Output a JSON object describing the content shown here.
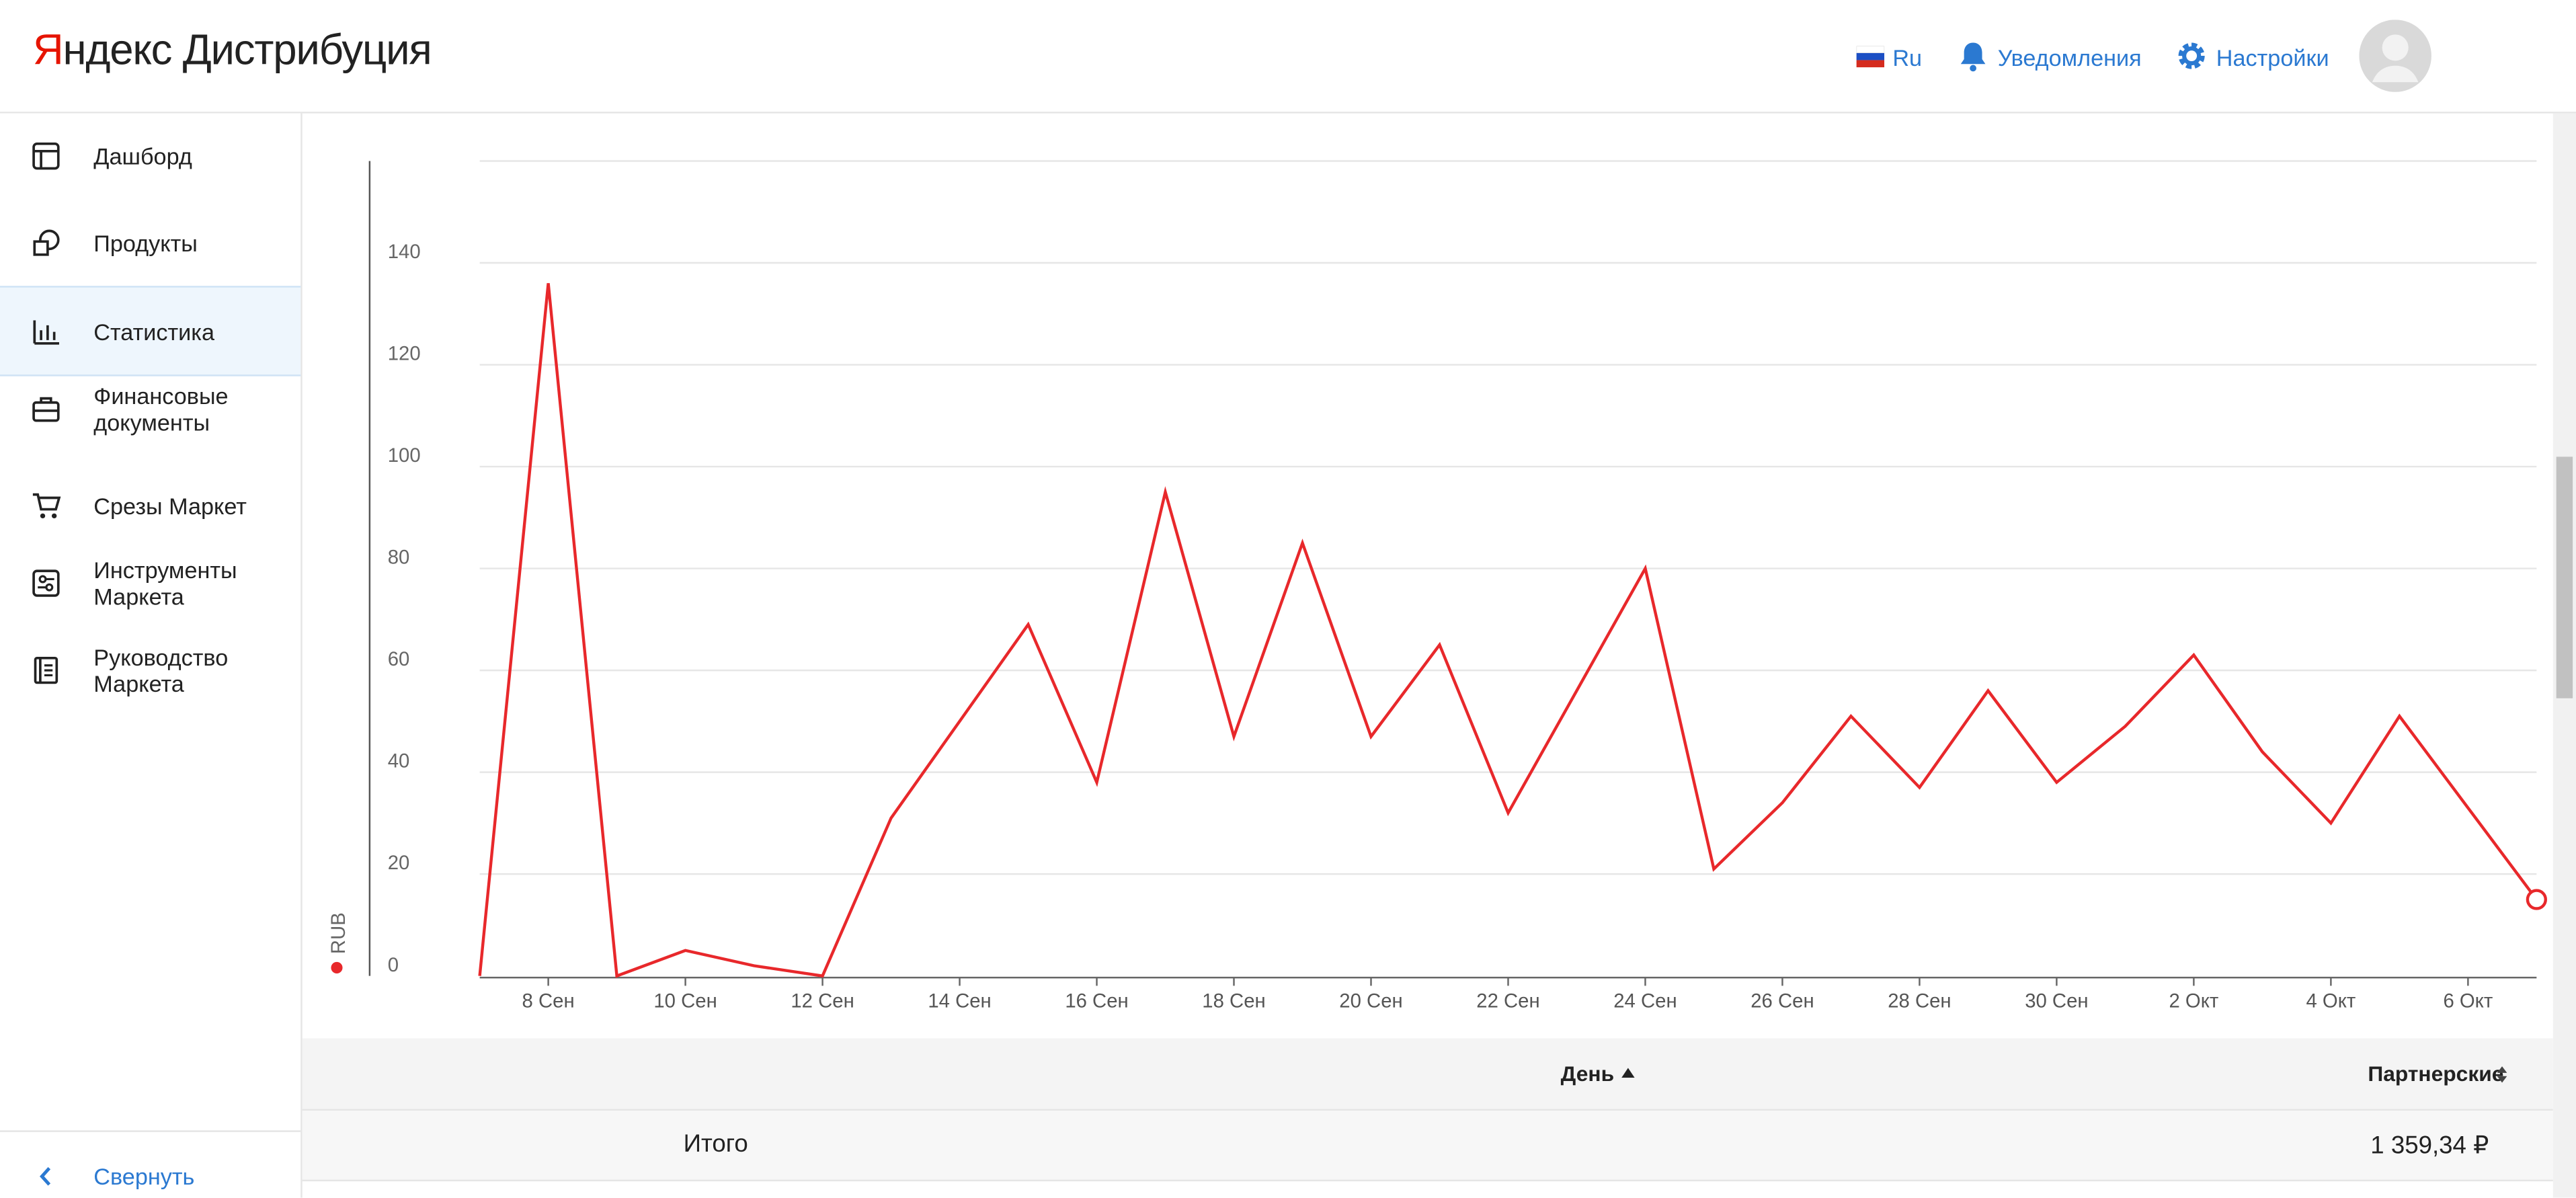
{
  "header": {
    "logo_brand": "Яндекс",
    "logo_product": "Дистрибуция",
    "language": "Ru",
    "notifications": "Уведомления",
    "settings": "Настройки"
  },
  "sidebar": {
    "items": [
      "Дашборд",
      "Продукты",
      "Статистика",
      "Финансовые документы",
      "Срезы Маркет",
      "Инструменты Маркета",
      "Руководство Маркета"
    ],
    "collapse": "Свернуть"
  },
  "chart_data": {
    "type": "line",
    "categories": [
      null,
      "8 Сен",
      null,
      "10 Сен",
      null,
      "12 Сен",
      null,
      "14 Сен",
      null,
      "16 Сен",
      null,
      "18 Сен",
      null,
      "20 Сен",
      null,
      "22 Сен",
      null,
      "24 Сен",
      null,
      "26 Сен",
      null,
      "28 Сен",
      null,
      "30 Сен",
      null,
      "2 Окт",
      null,
      "4 Окт",
      null,
      "6 Окт",
      null
    ],
    "series": [
      {
        "name": "RUB",
        "color": "#e8282b",
        "values": [
          0,
          136,
          0,
          5,
          2,
          0,
          31,
          50,
          69,
          38,
          95,
          47,
          85,
          47,
          65,
          32,
          56,
          80,
          21,
          34,
          51,
          37,
          56,
          38,
          49,
          63,
          44,
          30,
          51,
          33,
          15
        ]
      }
    ],
    "ylim": [
      0,
      160
    ],
    "yticks": [
      0,
      20,
      40,
      60,
      80,
      100,
      120,
      140
    ],
    "grid": true
  },
  "table": {
    "headers": [
      "День",
      "Партнерские"
    ],
    "rows": [
      [
        "Итого",
        "1 359,34 ₽"
      ]
    ]
  }
}
